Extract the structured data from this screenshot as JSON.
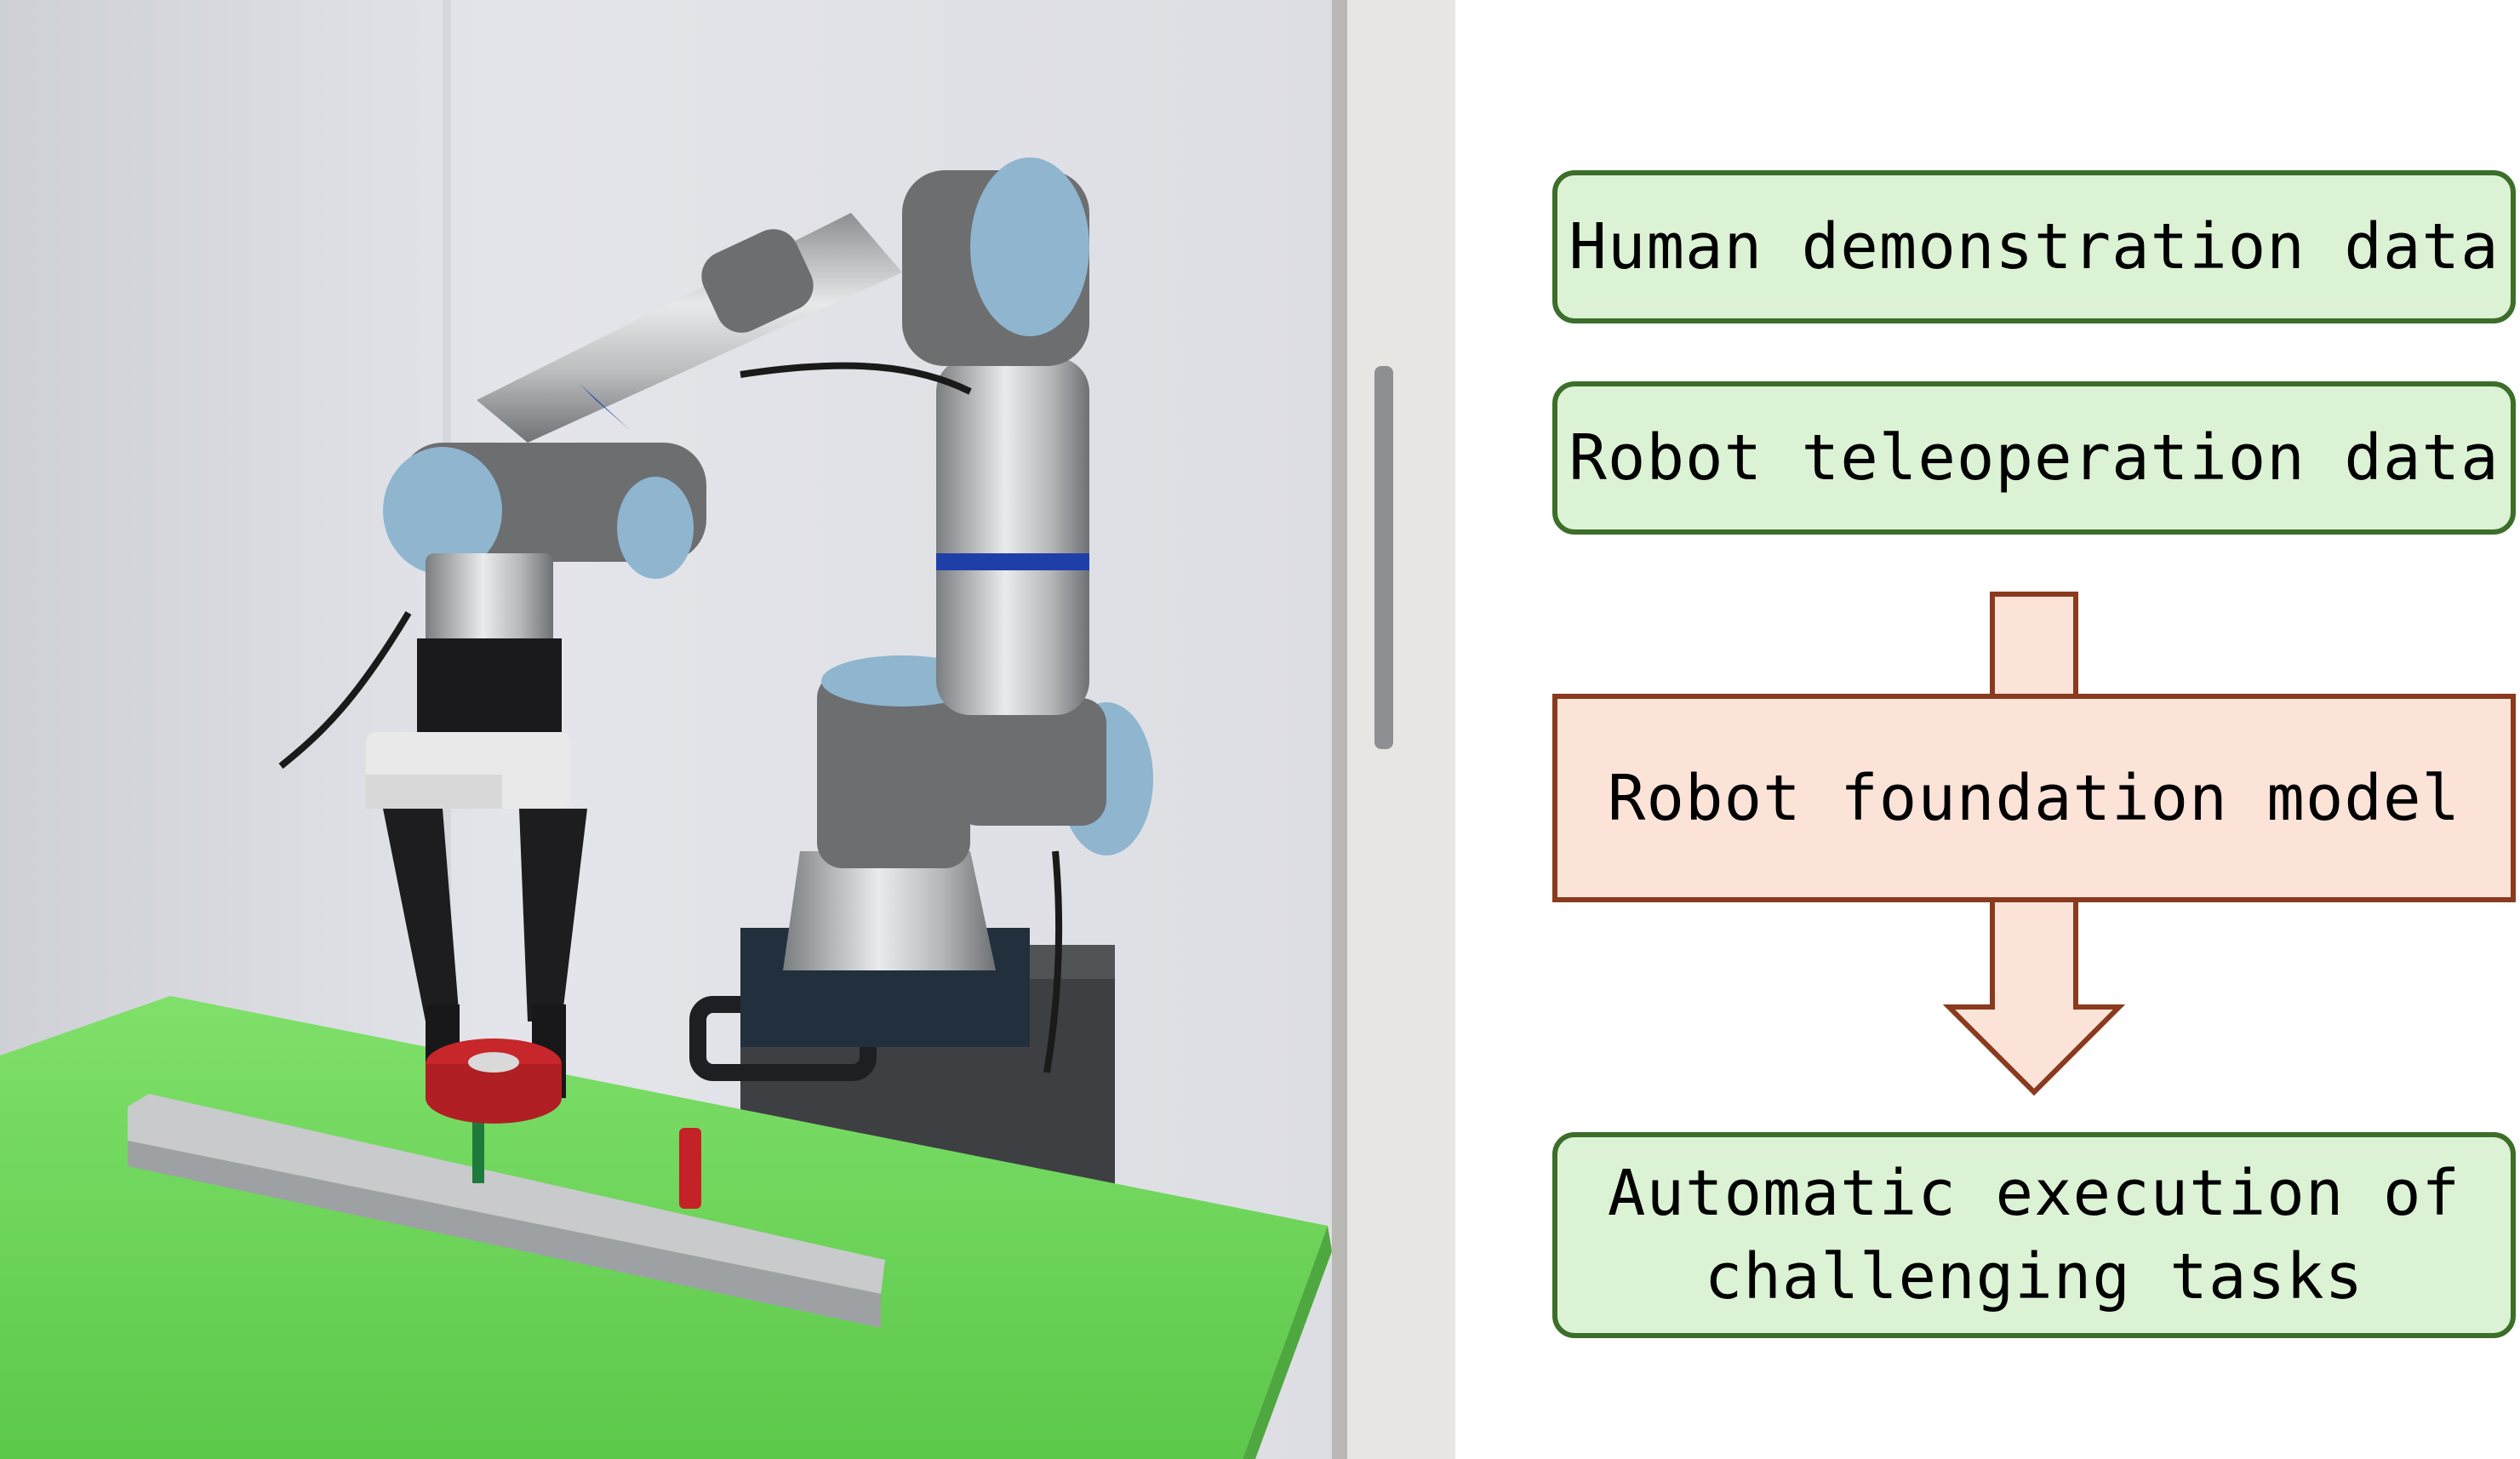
{
  "photo": {
    "description_icon": "robot-arm-photo"
  },
  "diagram": {
    "inputs": [
      {
        "label": "Human demonstration data"
      },
      {
        "label": "Robot teleoperation data"
      }
    ],
    "model": {
      "label": "Robot foundation model"
    },
    "output": {
      "lines": [
        "Automatic execution of",
        "challenging tasks"
      ]
    },
    "colors": {
      "green_fill": "#dbf2d4",
      "green_border": "#3c6e2a",
      "pink_fill": "#fbe3d8",
      "pink_border": "#8a3a1e"
    }
  }
}
